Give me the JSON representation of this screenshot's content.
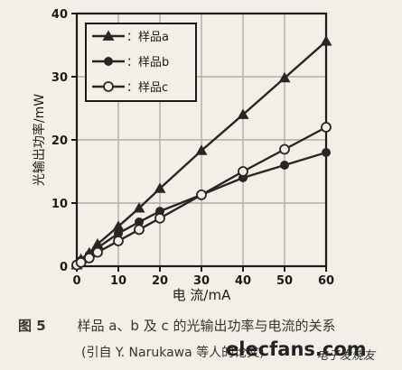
{
  "chart_data": {
    "type": "line",
    "ylabel": "光输出功率/mW",
    "xlabel": "电 流/mA",
    "xlim": [
      0,
      60
    ],
    "ylim": [
      0,
      40
    ],
    "xticks": [
      "0",
      "10",
      "20",
      "30",
      "40",
      "50",
      "60"
    ],
    "yticks": [
      "0",
      "10",
      "20",
      "30",
      "40"
    ],
    "series": [
      {
        "name": "：样品a",
        "color": "#2a2522",
        "marker": "triangle",
        "x": [
          0,
          1,
          3,
          5,
          10,
          15,
          20,
          30,
          40,
          50,
          60
        ],
        "y": [
          0.2,
          1.1,
          2.1,
          3.5,
          6.3,
          9.2,
          12.3,
          18.3,
          24,
          29.8,
          35.6
        ]
      },
      {
        "name": "：样品b",
        "color": "#2a2522",
        "marker": "filled-circle",
        "x": [
          0,
          1,
          3,
          5,
          10,
          15,
          20,
          30,
          40,
          50,
          60
        ],
        "y": [
          0.2,
          0.9,
          1.8,
          2.9,
          5.2,
          7,
          8.7,
          11.3,
          14,
          16,
          18
        ]
      },
      {
        "name": "：样品c",
        "color": "#2a2522",
        "marker": "open-circle",
        "x": [
          0,
          1,
          3,
          5,
          10,
          15,
          20,
          30,
          40,
          50,
          60
        ],
        "y": [
          0.2,
          0.6,
          1.3,
          2.2,
          4,
          5.8,
          7.6,
          11.3,
          15,
          18.5,
          22
        ]
      }
    ]
  },
  "caption": {
    "figure_label": "图 5",
    "line1": "样品 a、b 及 c 的光输出功率与电流的关系",
    "line2": "(引自 Y. Narukawa 等人的论文)"
  },
  "watermark": {
    "main": "elecfans.com",
    "sub": "电子发烧友"
  }
}
